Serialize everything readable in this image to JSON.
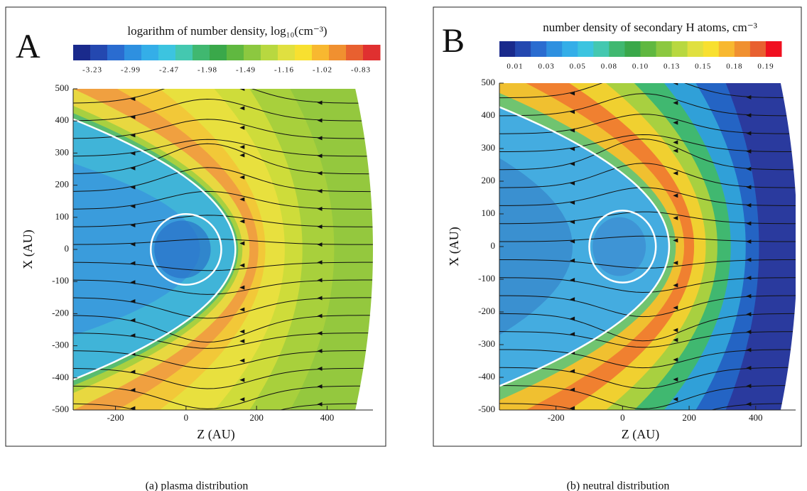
{
  "chart_data": [
    {
      "type": "contour",
      "panel_label": "A",
      "title": "logarithm of  number density, log₁₀(cm⁻³)",
      "xlabel": "Z (AU)",
      "ylabel": "X (AU)",
      "xlim": [
        -320,
        530
      ],
      "ylim": [
        -500,
        500
      ],
      "xticks": [
        -200,
        0,
        200,
        400
      ],
      "yticks": [
        -500,
        -400,
        -300,
        -200,
        -100,
        0,
        100,
        200,
        300,
        400,
        500
      ],
      "colorbar": {
        "ticks": [
          -3.23,
          -2.99,
          -2.47,
          -1.98,
          -1.49,
          -1.16,
          -1.02,
          -0.83
        ],
        "colors": [
          "#1a2a8c",
          "#2448b0",
          "#2a6cd0",
          "#2e90e0",
          "#34aee8",
          "#3cc4e0",
          "#44c8b0",
          "#40b870",
          "#3aa84a",
          "#60b840",
          "#8cc840",
          "#b8d840",
          "#e0e040",
          "#f8e030",
          "#f8b830",
          "#f09030",
          "#e86030",
          "#e03030"
        ]
      },
      "caption": "(a)  plasma distribution"
    },
    {
      "type": "contour",
      "panel_label": "B",
      "title": "number density of secondary H atoms, cm⁻³",
      "xlabel": "Z (AU)",
      "ylabel": "X (AU)",
      "xlim": [
        -370,
        520
      ],
      "ylim": [
        -500,
        500
      ],
      "xticks": [
        -200,
        0,
        200,
        400
      ],
      "yticks": [
        -500,
        -400,
        -300,
        -200,
        -100,
        0,
        100,
        200,
        300,
        400,
        500
      ],
      "colorbar": {
        "ticks": [
          0.01,
          0.03,
          0.05,
          0.08,
          {
            "value": 0.1,
            "label": "0.10"
          },
          0.13,
          0.15,
          0.18,
          0.19
        ],
        "colors": [
          "#1a2a8c",
          "#2448b0",
          "#2a6cd0",
          "#2e90e0",
          "#34aee8",
          "#3cc4e0",
          "#44c8b0",
          "#40b870",
          "#3aa84a",
          "#60b840",
          "#8cc840",
          "#b8d840",
          "#e0e040",
          "#f8e030",
          "#f8b830",
          "#f09030",
          "#e86030",
          "#f01020"
        ]
      },
      "caption": "(b)  neutral distribution"
    }
  ]
}
